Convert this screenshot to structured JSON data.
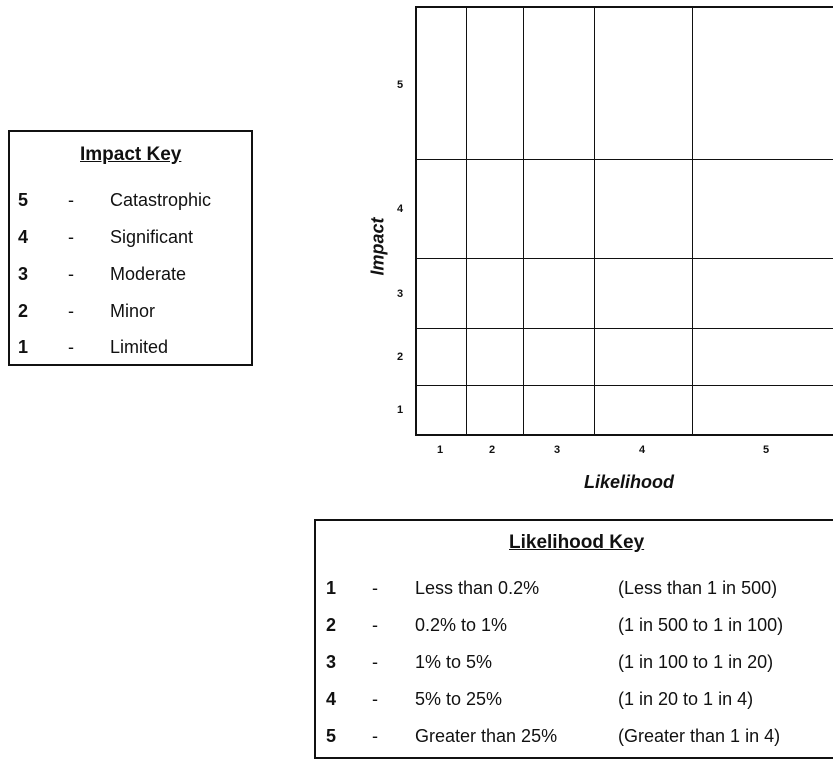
{
  "impact_key": {
    "title": "Impact Key",
    "rows": [
      {
        "num": "5",
        "dash": "-",
        "desc": "Catastrophic"
      },
      {
        "num": "4",
        "dash": "-",
        "desc": "Significant"
      },
      {
        "num": "3",
        "dash": "-",
        "desc": "Moderate"
      },
      {
        "num": "2",
        "dash": "-",
        "desc": "Minor"
      },
      {
        "num": "1",
        "dash": "-",
        "desc": "Limited"
      }
    ]
  },
  "matrix": {
    "y_axis_label": "Impact",
    "x_axis_label": "Likelihood",
    "y_ticks": [
      "5",
      "4",
      "3",
      "2",
      "1"
    ],
    "x_ticks": [
      "1",
      "2",
      "3",
      "4",
      "5"
    ]
  },
  "likelihood_key": {
    "title": "Likelihood Key",
    "rows": [
      {
        "num": "1",
        "dash": "-",
        "desc": "Less than 0.2%",
        "odds": "(Less than 1 in 500)"
      },
      {
        "num": "2",
        "dash": "-",
        "desc": "0.2% to 1%",
        "odds": "(1 in 500 to 1 in 100)"
      },
      {
        "num": "3",
        "dash": "-",
        "desc": "1% to 5%",
        "odds": "(1 in 100 to 1 in 20)"
      },
      {
        "num": "4",
        "dash": "-",
        "desc": "5% to 25%",
        "odds": "(1 in 20 to 1 in 4)"
      },
      {
        "num": "5",
        "dash": "-",
        "desc": "Greater than 25%",
        "odds": "(Greater than 1 in 4)"
      }
    ]
  }
}
